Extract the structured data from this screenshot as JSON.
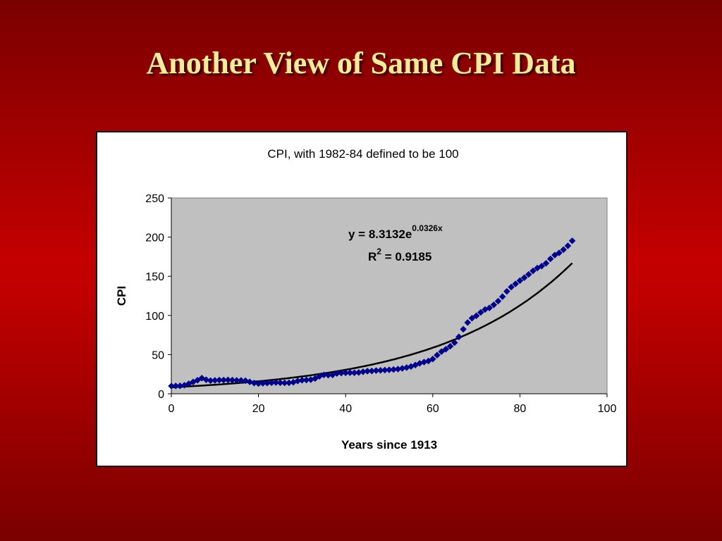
{
  "slide": {
    "title": "Another View of Same CPI Data"
  },
  "chart_data": {
    "type": "scatter",
    "title": "CPI, with 1982-84 defined to be 100",
    "xlabel": "Years since 1913",
    "ylabel": "CPI",
    "xlim": [
      0,
      100
    ],
    "ylim": [
      0,
      250
    ],
    "xticks": [
      0,
      20,
      40,
      60,
      80,
      100
    ],
    "yticks": [
      0,
      50,
      100,
      150,
      200,
      250
    ],
    "grid": false,
    "plot_background": "#c0c0c0",
    "series": [
      {
        "kind": "points",
        "color": "#00008b",
        "marker": "diamond",
        "x": [
          0,
          1,
          2,
          3,
          4,
          5,
          6,
          7,
          8,
          9,
          10,
          11,
          12,
          13,
          14,
          15,
          16,
          17,
          18,
          19,
          20,
          21,
          22,
          23,
          24,
          25,
          26,
          27,
          28,
          29,
          30,
          31,
          32,
          33,
          34,
          35,
          36,
          37,
          38,
          39,
          40,
          41,
          42,
          43,
          44,
          45,
          46,
          47,
          48,
          49,
          50,
          51,
          52,
          53,
          54,
          55,
          56,
          57,
          58,
          59,
          60,
          61,
          62,
          63,
          64,
          65,
          66,
          67,
          68,
          69,
          70,
          71,
          72,
          73,
          74,
          75,
          76,
          77,
          78,
          79,
          80,
          81,
          82,
          83,
          84,
          85,
          86,
          87,
          88,
          89,
          90,
          91,
          92
        ],
        "y": [
          9.9,
          10.0,
          10.1,
          10.9,
          12.8,
          15.1,
          17.3,
          20.0,
          17.9,
          16.8,
          17.1,
          17.5,
          17.5,
          17.7,
          17.4,
          17.1,
          17.1,
          16.7,
          15.2,
          13.7,
          13.0,
          13.4,
          13.7,
          14.1,
          14.4,
          14.1,
          13.9,
          14.0,
          14.7,
          16.3,
          17.3,
          17.6,
          18.0,
          19.5,
          22.3,
          24.1,
          23.8,
          24.1,
          26.0,
          26.5,
          26.7,
          26.9,
          26.8,
          27.2,
          28.1,
          28.9,
          29.1,
          29.6,
          29.9,
          30.2,
          30.6,
          31.0,
          31.5,
          32.4,
          33.4,
          34.8,
          36.7,
          38.8,
          40.5,
          41.8,
          44.4,
          49.3,
          53.8,
          56.9,
          60.6,
          65.2,
          72.6,
          82.4,
          90.9,
          96.5,
          99.6,
          103.9,
          107.6,
          109.6,
          113.6,
          118.3,
          124.0,
          130.7,
          136.2,
          140.3,
          144.5,
          148.2,
          152.4,
          156.9,
          160.5,
          163.0,
          166.6,
          172.2,
          177.1,
          179.9,
          184.0,
          188.9,
          195.3
        ]
      },
      {
        "kind": "trendline",
        "type": "exponential",
        "color": "#000000",
        "a": 8.3132,
        "b": 0.0326,
        "x_range": [
          0,
          92
        ]
      }
    ],
    "annotations": {
      "equation_main": "y = 8.3132e",
      "equation_exp": "0.0326x",
      "r2_main": "R",
      "r2_sup": "2",
      "r2_value": " = 0.9185"
    }
  }
}
